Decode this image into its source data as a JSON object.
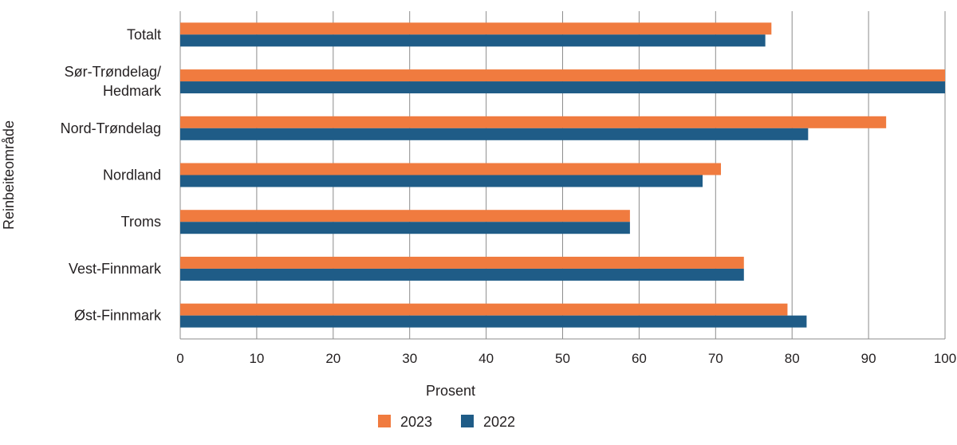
{
  "chart_data": {
    "type": "bar",
    "orientation": "horizontal",
    "categories": [
      [
        "Totalt"
      ],
      [
        "Sør-Trøndelag/",
        "Hedmark"
      ],
      [
        "Nord-Trøndelag"
      ],
      [
        "Nordland"
      ],
      [
        "Troms"
      ],
      [
        "Vest-Finnmark"
      ],
      [
        "Øst-Finnmark"
      ]
    ],
    "series": [
      {
        "name": "2023",
        "color": "#f07b3f",
        "values": [
          77.3,
          100,
          92.3,
          70.7,
          58.8,
          73.7,
          79.4
        ]
      },
      {
        "name": "2022",
        "color": "#1f5c87",
        "values": [
          76.5,
          100,
          82.1,
          68.3,
          58.8,
          73.7,
          81.9
        ]
      }
    ],
    "xlabel": "Prosent",
    "ylabel": "Reinbeiteområde",
    "xlim": [
      0,
      100
    ],
    "xticks": [
      "0",
      "10",
      "20",
      "30",
      "40",
      "50",
      "60",
      "70",
      "80",
      "90",
      "100"
    ],
    "grid": "vertical",
    "legend": "bottom"
  }
}
